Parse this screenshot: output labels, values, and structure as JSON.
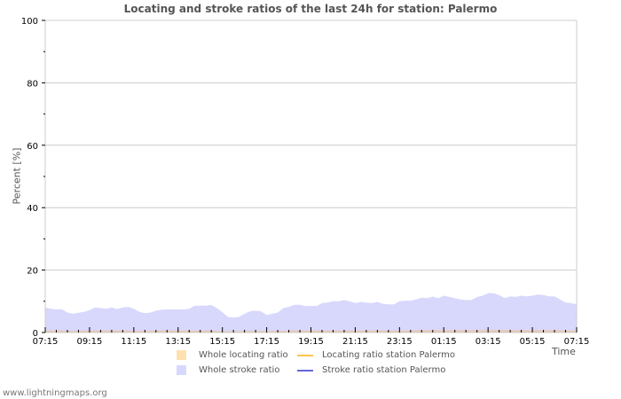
{
  "page": {
    "footer": "www.lightningmaps.org"
  },
  "legend": {
    "items": [
      {
        "label": "Whole locating ratio",
        "type": "box",
        "color": "#ffe0b0"
      },
      {
        "label": "Locating ratio station Palermo",
        "type": "line",
        "color": "#ffc64d"
      },
      {
        "label": "Whole stroke ratio",
        "type": "box",
        "color": "#d8d8ff"
      },
      {
        "label": "Stroke ratio station Palermo",
        "type": "line",
        "color": "#6666dd"
      }
    ]
  },
  "colors": {
    "grid": "#cccccc",
    "axis": "#cccccc",
    "stroke_fill": "#d8d8fc",
    "stroke_edge": "#c0c0f0",
    "locating_fill": "#e8c8b0",
    "tick": "#000000",
    "text": "#000000"
  },
  "chart_data": {
    "type": "area",
    "title": "Locating and stroke ratios of the last 24h for station: Palermo",
    "xlabel": "Time",
    "ylabel": "Percent   [%]",
    "ylim": [
      0,
      100
    ],
    "yticks": [
      0,
      20,
      40,
      60,
      80,
      100
    ],
    "xticks": [
      "07:15",
      "09:15",
      "11:15",
      "13:15",
      "15:15",
      "17:15",
      "19:15",
      "21:15",
      "23:15",
      "01:15",
      "03:15",
      "05:15",
      "07:15"
    ],
    "x_hours": [
      0,
      0.25,
      0.5,
      0.75,
      1,
      1.25,
      1.5,
      1.75,
      2,
      2.25,
      2.5,
      2.75,
      3,
      3.25,
      3.5,
      3.75,
      4,
      4.25,
      4.5,
      4.75,
      5,
      5.25,
      5.5,
      5.75,
      6,
      6.25,
      6.5,
      6.75,
      7,
      7.25,
      7.5,
      7.75,
      8,
      8.25,
      8.5,
      8.75,
      9,
      9.25,
      9.5,
      9.75,
      10,
      10.25,
      10.5,
      10.75,
      11,
      11.25,
      11.5,
      11.75,
      12,
      12.25,
      12.5,
      12.75,
      13,
      13.25,
      13.5,
      13.75,
      14,
      14.25,
      14.5,
      14.75,
      15,
      15.25,
      15.5,
      15.75,
      16,
      16.25,
      16.5,
      16.75,
      17,
      17.25,
      17.5,
      17.75,
      18,
      18.25,
      18.5,
      18.75,
      19,
      19.25,
      19.5,
      19.75,
      20,
      20.25,
      20.5,
      20.75,
      21,
      21.25,
      21.5,
      21.75,
      22,
      22.25,
      22.5,
      22.75,
      23,
      23.25,
      23.5,
      23.75,
      24
    ],
    "grid": true,
    "legend_position": "bottom",
    "series": [
      {
        "name": "Whole stroke ratio",
        "kind": "area",
        "values": [
          8.0,
          7.6,
          7.4,
          7.5,
          6.4,
          6.0,
          6.3,
          6.6,
          7.2,
          8.0,
          7.8,
          7.6,
          8.0,
          7.5,
          8.0,
          8.2,
          7.6,
          6.6,
          6.2,
          6.4,
          7.0,
          7.3,
          7.4,
          7.4,
          7.4,
          7.4,
          7.6,
          8.6,
          8.6,
          8.6,
          8.8,
          7.8,
          6.5,
          5.0,
          4.8,
          5.0,
          6.0,
          6.8,
          7.0,
          6.8,
          5.6,
          6.0,
          6.4,
          7.8,
          8.2,
          8.9,
          8.9,
          8.5,
          8.5,
          8.5,
          9.4,
          9.6,
          10.0,
          10.0,
          10.4,
          10.0,
          9.4,
          9.8,
          9.6,
          9.4,
          9.8,
          9.2,
          9.0,
          9.0,
          10.0,
          10.2,
          10.2,
          10.6,
          11.2,
          11.0,
          11.5,
          11.0,
          11.8,
          11.4,
          11.0,
          10.6,
          10.4,
          10.4,
          11.4,
          11.8,
          12.6,
          12.6,
          12.0,
          11.0,
          11.6,
          11.4,
          11.8,
          11.6,
          11.8,
          12.2,
          12.0,
          11.6,
          11.6,
          10.6,
          9.6,
          9.4,
          9.0
        ],
        "color": "#d8d8fc"
      },
      {
        "name": "Whole locating ratio",
        "kind": "area",
        "values": [
          0.6,
          0.6,
          0.6,
          0.6,
          0.5,
          0.5,
          0.5,
          0.6,
          0.6,
          0.6,
          0.6,
          0.6,
          0.7,
          0.6,
          0.6,
          0.6,
          0.5,
          0.5,
          0.5,
          0.5,
          0.6,
          0.6,
          0.6,
          0.6,
          0.6,
          0.6,
          0.6,
          0.6,
          0.6,
          0.6,
          0.6,
          0.5,
          0.4,
          0.4,
          0.4,
          0.4,
          0.5,
          0.5,
          0.5,
          0.5,
          0.4,
          0.5,
          0.5,
          0.5,
          0.6,
          0.6,
          0.6,
          0.6,
          0.6,
          0.6,
          0.6,
          0.6,
          0.6,
          0.6,
          0.6,
          0.6,
          0.6,
          0.6,
          0.6,
          0.6,
          0.6,
          0.6,
          0.6,
          0.6,
          0.6,
          0.6,
          0.6,
          0.7,
          0.7,
          0.7,
          0.7,
          0.7,
          0.7,
          0.7,
          0.7,
          0.7,
          0.7,
          0.7,
          0.7,
          0.7,
          0.8,
          0.8,
          0.8,
          0.7,
          0.7,
          0.7,
          0.7,
          0.7,
          0.7,
          0.7,
          0.7,
          0.7,
          0.7,
          0.7,
          0.6,
          0.6,
          0.6
        ],
        "color": "#e8c8b0"
      },
      {
        "name": "Locating ratio station Palermo",
        "kind": "line",
        "values": [],
        "color": "#ffc64d"
      },
      {
        "name": "Stroke ratio station Palermo",
        "kind": "line",
        "values": [],
        "color": "#6666dd"
      }
    ]
  }
}
